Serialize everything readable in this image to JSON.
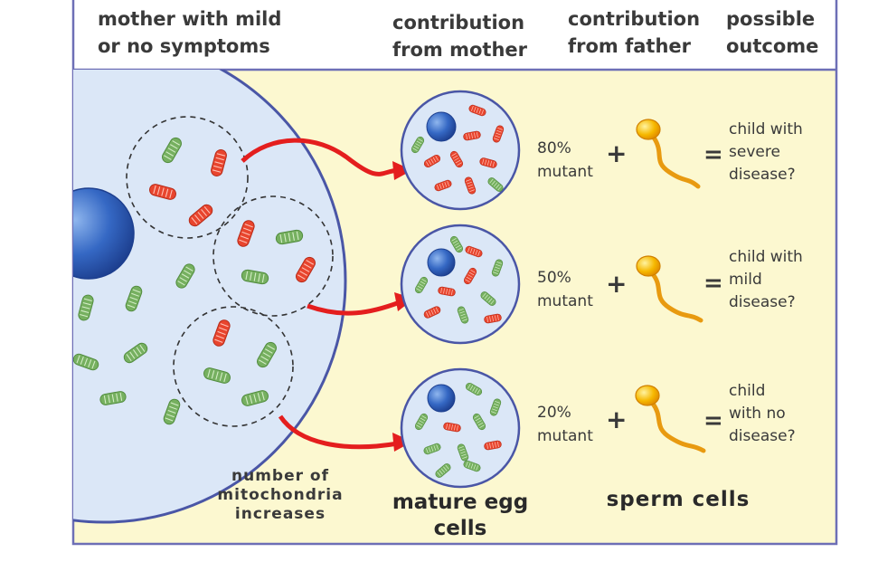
{
  "header": {
    "col1": [
      "mother with mild",
      "or no symptoms"
    ],
    "col2": [
      "contribution",
      "from mother"
    ],
    "col3": [
      "contribution",
      "from father"
    ],
    "col4": [
      "possible",
      "outcome"
    ]
  },
  "annotation": [
    "number of",
    "mitochondria",
    "increases"
  ],
  "egg_caption": [
    "mature egg",
    "cells"
  ],
  "sperm_caption": "sperm cells",
  "operators": {
    "plus": "+",
    "equals": "="
  },
  "rows": [
    {
      "percent": "80%",
      "mutant": "mutant",
      "outcome": [
        "child with",
        "severe",
        "disease?"
      ]
    },
    {
      "percent": "50%",
      "mutant": "mutant",
      "outcome": [
        "child with",
        "mild",
        "disease?"
      ]
    },
    {
      "percent": "20%",
      "mutant": "mutant",
      "outcome": [
        "child",
        "with no",
        "disease?"
      ]
    }
  ],
  "colors": {
    "panel_background": "#fcf8d0",
    "cell_fill": "#dbe7f7",
    "cell_border": "#4a56a6",
    "nucleus": "#2f63c0",
    "mutant_mitochondria": "#e8452e",
    "normal_mitochondria": "#76b060",
    "arrow": "#e41e1e",
    "sperm": "#f2a400"
  }
}
